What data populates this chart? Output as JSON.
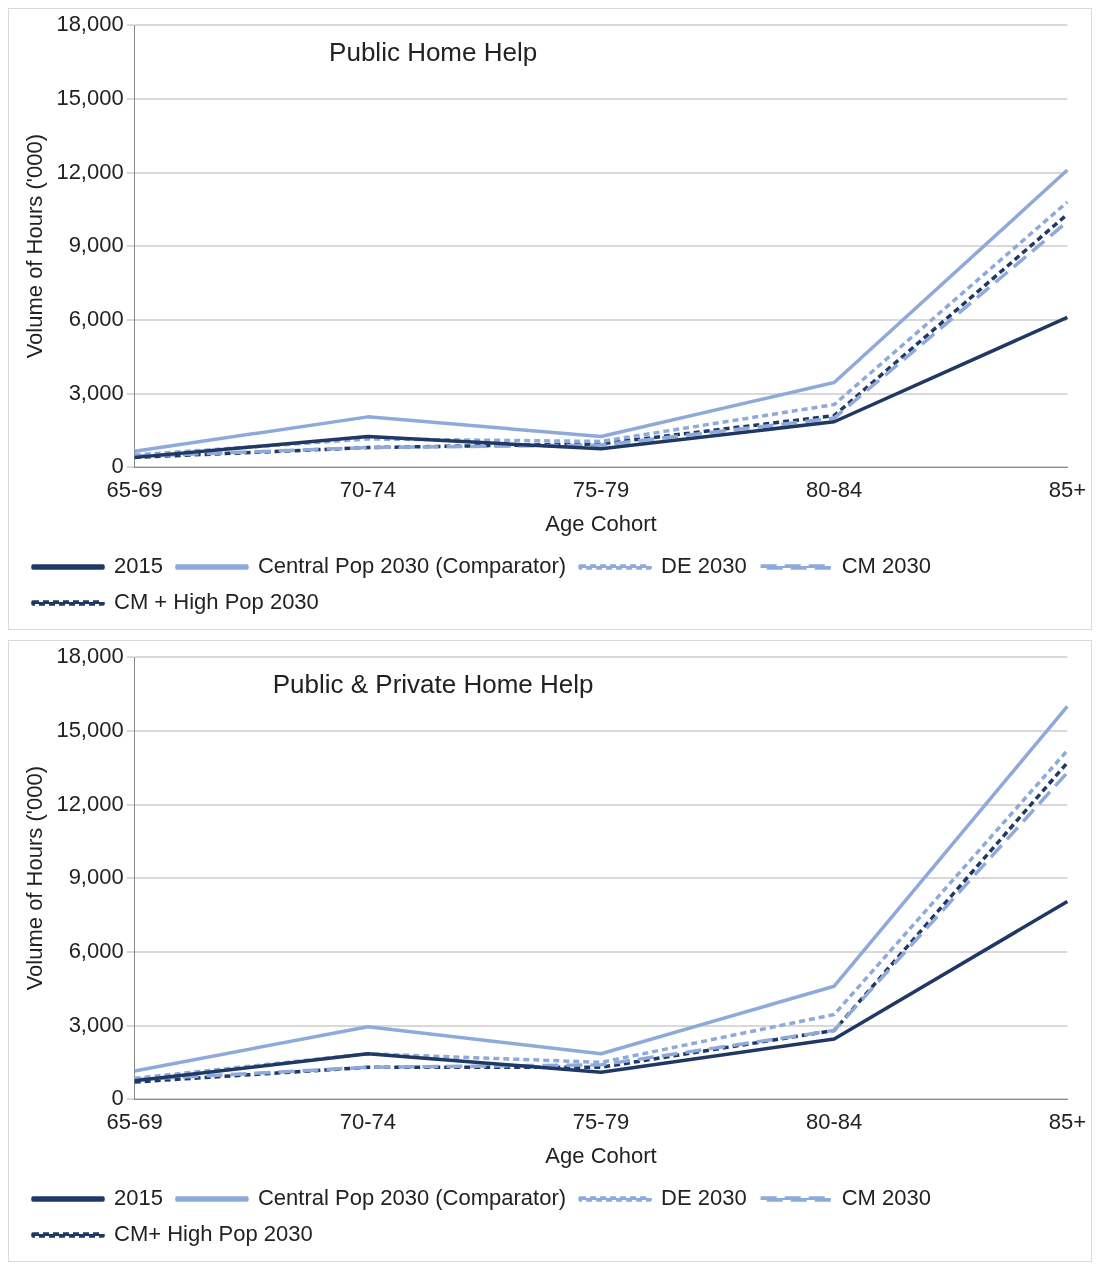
{
  "chart_data": [
    {
      "type": "line",
      "title": "Public Home Help",
      "xlabel": "Age Cohort",
      "ylabel": "Volume of Hours ('000)",
      "categories": [
        "65-69",
        "70-74",
        "75-79",
        "80-84",
        "85+"
      ],
      "ylim": [
        0,
        18000
      ],
      "yticks": [
        {
          "value": 0,
          "label": "0"
        },
        {
          "value": 3000,
          "label": "3,000"
        },
        {
          "value": 6000,
          "label": "6,000"
        },
        {
          "value": 9000,
          "label": "9,000"
        },
        {
          "value": 12000,
          "label": "12,000"
        },
        {
          "value": 15000,
          "label": "15,000"
        },
        {
          "value": 18000,
          "label": "18,000"
        }
      ],
      "grid": "y",
      "legend": "bottom",
      "marker": "none",
      "series": [
        {
          "name": "2015",
          "color": "#1f3864",
          "line_style": "solid",
          "values": [
            400,
            1250,
            750,
            1850,
            6100
          ]
        },
        {
          "name": "Central Pop 2030 (Comparator)",
          "color": "#8eaadb",
          "line_style": "solid",
          "values": [
            650,
            2050,
            1250,
            3450,
            12100
          ]
        },
        {
          "name": "DE 2030",
          "color": "#8eaadb",
          "line_style": "dotted",
          "values": [
            500,
            1150,
            1050,
            2550,
            10800
          ]
        },
        {
          "name": "CM 2030",
          "color": "#8eaadb",
          "line_style": "dashed",
          "values": [
            450,
            800,
            900,
            2000,
            10000
          ]
        },
        {
          "name": "CM + High Pop 2030",
          "color": "#1f3864",
          "line_style": "dotted",
          "values": [
            400,
            800,
            950,
            2100,
            10300
          ]
        }
      ]
    },
    {
      "type": "line",
      "title": "Public & Private Home Help",
      "xlabel": "Age Cohort",
      "ylabel": "Volume of Hours ('000)",
      "categories": [
        "65-69",
        "70-74",
        "75-79",
        "80-84",
        "85+"
      ],
      "ylim": [
        0,
        18000
      ],
      "yticks": [
        {
          "value": 0,
          "label": "0"
        },
        {
          "value": 3000,
          "label": "3,000"
        },
        {
          "value": 6000,
          "label": "6,000"
        },
        {
          "value": 9000,
          "label": "9,000"
        },
        {
          "value": 12000,
          "label": "12,000"
        },
        {
          "value": 15000,
          "label": "15,000"
        },
        {
          "value": 18000,
          "label": "18,000"
        }
      ],
      "grid": "y",
      "legend": "bottom",
      "marker": "none",
      "series": [
        {
          "name": "2015",
          "color": "#1f3864",
          "line_style": "solid",
          "values": [
            750,
            1850,
            1100,
            2450,
            8050
          ]
        },
        {
          "name": "Central Pop 2030 (Comparator)",
          "color": "#8eaadb",
          "line_style": "solid",
          "values": [
            1150,
            2950,
            1850,
            4600,
            16000
          ]
        },
        {
          "name": "DE 2030",
          "color": "#8eaadb",
          "line_style": "dotted",
          "values": [
            850,
            1850,
            1500,
            3450,
            14200
          ]
        },
        {
          "name": "CM 2030",
          "color": "#8eaadb",
          "line_style": "dashed",
          "values": [
            800,
            1300,
            1400,
            2800,
            13300
          ]
        },
        {
          "name": "CM+ High Pop 2030",
          "color": "#1f3864",
          "line_style": "dotted",
          "values": [
            700,
            1300,
            1300,
            2800,
            13700
          ]
        }
      ]
    }
  ]
}
